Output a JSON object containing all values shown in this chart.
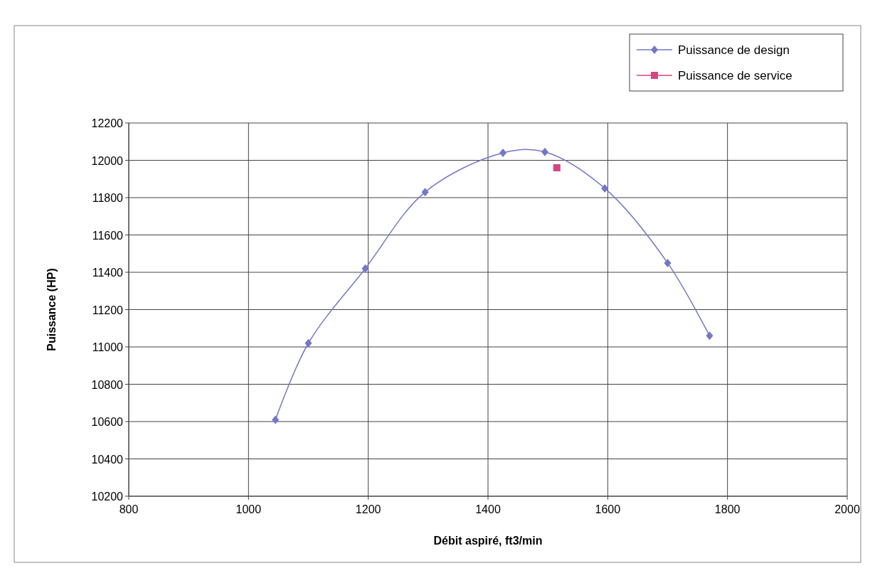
{
  "chart_data": {
    "type": "line",
    "xlabel": "Débit aspiré, ft3/min",
    "ylabel": "Puissance (HP)",
    "xlim": [
      800,
      2000
    ],
    "xticks": [
      800,
      1000,
      1200,
      1400,
      1600,
      1800,
      2000
    ],
    "ylim": [
      10200,
      12200
    ],
    "yticks": [
      10200,
      10400,
      10600,
      10800,
      11000,
      11200,
      11400,
      11600,
      11800,
      12000,
      12200
    ],
    "grid": true,
    "legend": "top right",
    "series": [
      {
        "name": "Puissance de design",
        "color": "#7378c4",
        "marker": "diamond",
        "x": [
          1045,
          1100,
          1195,
          1295,
          1425,
          1495,
          1595,
          1700,
          1770
        ],
        "values": [
          10610,
          11020,
          11420,
          11830,
          12040,
          12045,
          11850,
          11450,
          11060
        ]
      },
      {
        "name": "Puissance de service",
        "color": "#d6457f",
        "type": "scatter",
        "marker": "square",
        "x": [
          1515
        ],
        "values": [
          11960
        ]
      }
    ]
  }
}
